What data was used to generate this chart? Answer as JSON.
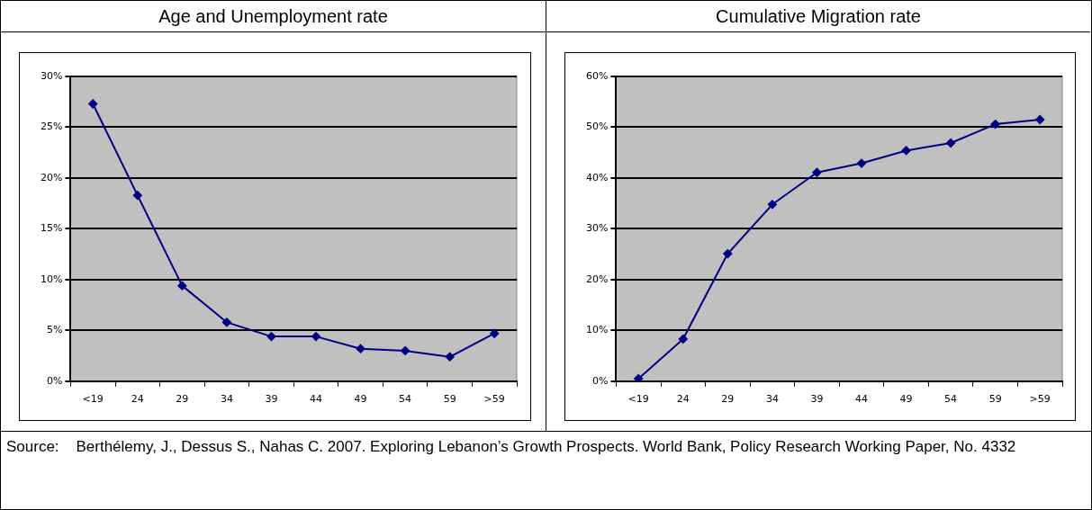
{
  "chart_data": [
    {
      "type": "line",
      "title": "Age and Unemployment rate",
      "categories": [
        "<19",
        "24",
        "29",
        "34",
        "39",
        "44",
        "49",
        "54",
        "59",
        ">59"
      ],
      "series": [
        {
          "color": "#000080",
          "values": [
            27.3,
            18.3,
            9.4,
            5.8,
            4.4,
            4.4,
            3.2,
            3.0,
            2.4,
            4.7
          ]
        }
      ],
      "ylim": [
        0,
        30
      ],
      "yticks": [
        {
          "value": 0,
          "label": "0%"
        },
        {
          "value": 5,
          "label": "5%"
        },
        {
          "value": 10,
          "label": "10%"
        },
        {
          "value": 15,
          "label": "15%"
        },
        {
          "value": 20,
          "label": "20%"
        },
        {
          "value": 25,
          "label": "25%"
        },
        {
          "value": 30,
          "label": "30%"
        }
      ],
      "grid": "y",
      "legend": false,
      "marker": "diamond",
      "line_style": "solid"
    },
    {
      "type": "line",
      "title": "Cumulative Migration rate",
      "categories": [
        "<19",
        "24",
        "29",
        "34",
        "39",
        "44",
        "49",
        "54",
        "59",
        ">59"
      ],
      "series": [
        {
          "color": "#000080",
          "values": [
            0.5,
            8.3,
            25.1,
            34.8,
            41.1,
            42.9,
            45.4,
            46.9,
            50.6,
            51.5
          ]
        }
      ],
      "ylim": [
        0,
        60
      ],
      "yticks": [
        {
          "value": 0,
          "label": "0%"
        },
        {
          "value": 10,
          "label": "10%"
        },
        {
          "value": 20,
          "label": "20%"
        },
        {
          "value": 30,
          "label": "30%"
        },
        {
          "value": 40,
          "label": "40%"
        },
        {
          "value": 50,
          "label": "50%"
        },
        {
          "value": 60,
          "label": "60%"
        }
      ],
      "grid": "y",
      "legend": false,
      "marker": "diamond",
      "line_style": "solid",
      "annotations": [
        "Source:    Berthélemy, J., Dessus S., Nahas C. 2007. Exploring Lebanon’s Growth Prospects. World Bank, Policy Research Working Paper, No. 4332"
      ]
    }
  ]
}
